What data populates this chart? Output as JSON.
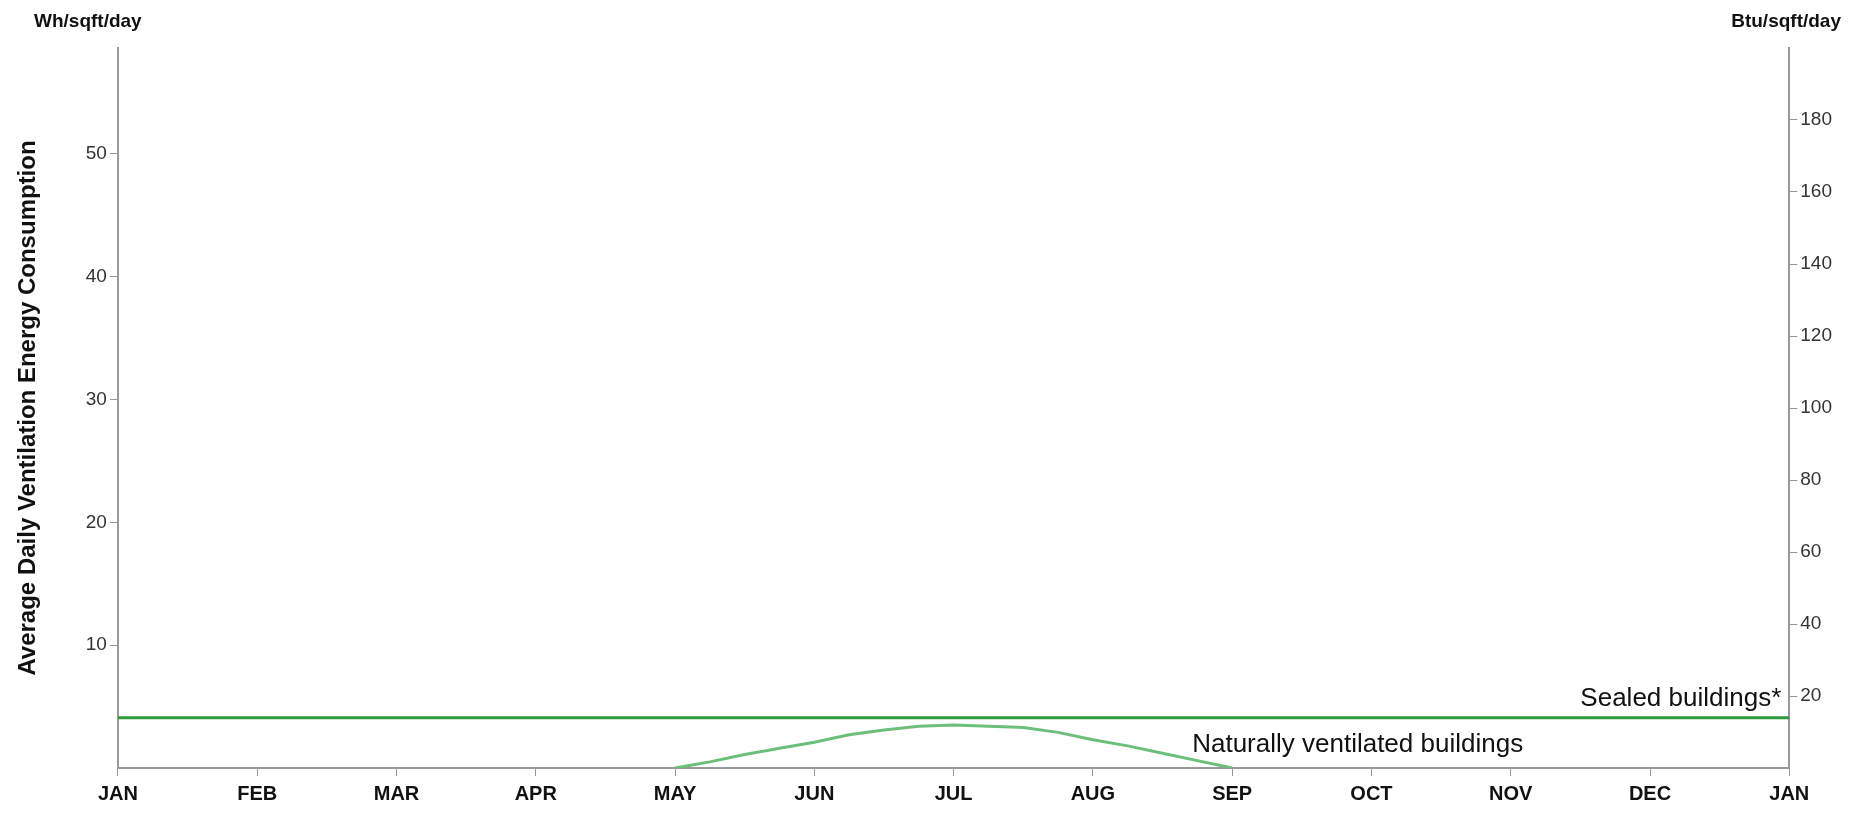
{
  "chart_data": {
    "type": "line",
    "ylabel": "Average Daily Ventilation Energy Consumption",
    "y2label": "Btu/sqft/day",
    "annotations": [
      "Wh/sqft/day"
    ],
    "categories": [
      "JAN",
      null,
      null,
      null,
      "FEB",
      null,
      null,
      null,
      "MAR",
      null,
      null,
      null,
      "APR",
      null,
      null,
      null,
      "MAY",
      null,
      null,
      null,
      "JUN",
      null,
      null,
      null,
      "JUL",
      null,
      null,
      null,
      "AUG",
      null,
      null,
      null,
      "SEP",
      null,
      null,
      null,
      "OCT",
      null,
      null,
      null,
      "NOV",
      null,
      null,
      null,
      "DEC",
      null,
      null,
      null,
      "JAN"
    ],
    "ylim": [
      0,
      58.6
    ],
    "yticks": [
      10,
      20,
      30,
      40,
      50
    ],
    "y2lim": [
      0,
      200
    ],
    "y2ticks": [
      20,
      40,
      60,
      80,
      100,
      120,
      140,
      160,
      180
    ],
    "grid": false,
    "legend": false,
    "marker": "none",
    "line_style": "solid",
    "series": [
      {
        "name": "Sealed buildings*",
        "color": "#2e9a3e",
        "values": [
          4.1,
          4.1,
          4.1,
          4.1,
          4.1,
          4.1,
          4.1,
          4.1,
          4.1,
          4.1,
          4.1,
          4.1,
          4.1,
          4.1,
          4.1,
          4.1,
          4.1,
          4.1,
          4.1,
          4.1,
          4.1,
          4.1,
          4.1,
          4.1,
          4.1,
          4.1,
          4.1,
          4.1,
          4.1,
          4.1,
          4.1,
          4.1,
          4.1,
          4.1,
          4.1,
          4.1,
          4.1,
          4.1,
          4.1,
          4.1,
          4.1,
          4.1,
          4.1,
          4.1,
          4.1,
          4.1,
          4.1,
          4.1,
          4.1
        ]
      },
      {
        "name": "Naturally ventilated buildings",
        "color": "#6cbf7a",
        "values": [
          null,
          null,
          null,
          null,
          null,
          null,
          null,
          null,
          null,
          null,
          null,
          null,
          null,
          null,
          null,
          null,
          0,
          0.5,
          1.1,
          1.6,
          2.1,
          2.7,
          3.1,
          3.4,
          3.5,
          3.4,
          3.3,
          2.9,
          2.3,
          1.8,
          1.2,
          0.6,
          0,
          null,
          null,
          null,
          null,
          null,
          null,
          null,
          null,
          null,
          null,
          null,
          null,
          null,
          null,
          null,
          null
        ]
      }
    ]
  }
}
